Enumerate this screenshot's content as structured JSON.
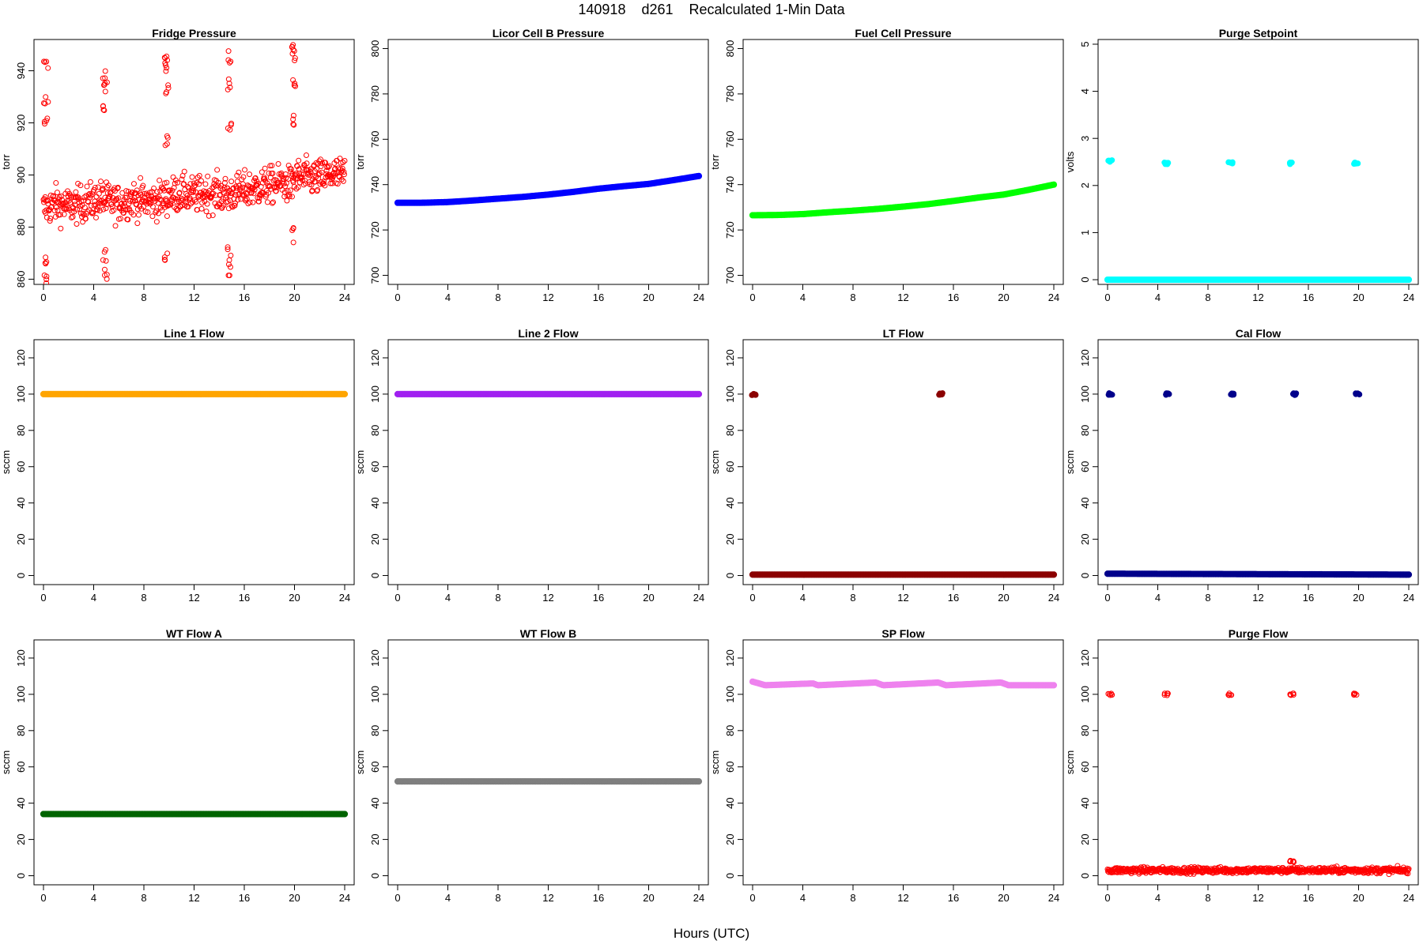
{
  "figure": {
    "title": "140918    d261    Recalculated 1-Min Data",
    "xlabel": "Hours (UTC)"
  },
  "chart_data": [
    {
      "type": "scatter",
      "title": "Fridge Pressure",
      "ylabel": "torr",
      "xlim": [
        0,
        24
      ],
      "ylim": [
        858,
        952
      ],
      "xticks": [
        0,
        4,
        8,
        12,
        16,
        20,
        24
      ],
      "yticks": [
        860,
        880,
        900,
        920,
        940
      ],
      "color": "#ff0000",
      "marker": "open-circle",
      "series": [
        {
          "x": [
            0,
            1,
            2,
            3,
            4,
            4.5,
            5,
            6,
            7,
            8,
            9,
            10,
            11,
            12,
            13,
            14,
            14.8,
            15,
            16,
            17,
            18,
            19,
            19.8,
            20,
            21,
            22,
            23,
            24
          ],
          "y": [
            887,
            889,
            888,
            889,
            890,
            891,
            890,
            889,
            891,
            890,
            890,
            892,
            893,
            892,
            893,
            893,
            892,
            893,
            894,
            895,
            896,
            897,
            896,
            899,
            899,
            899,
            900,
            900
          ]
        }
      ],
      "outliers": [
        {
          "x": 0.2,
          "y": [
            860,
            866,
            920,
            930,
            944
          ]
        },
        {
          "x": 4.9,
          "y": [
            863,
            870,
            925,
            935,
            937
          ]
        },
        {
          "x": 9.8,
          "y": [
            868,
            912,
            932,
            940,
            944
          ]
        },
        {
          "x": 14.8,
          "y": [
            864,
            870,
            920,
            935,
            946
          ]
        },
        {
          "x": 19.9,
          "y": [
            877,
            920,
            935,
            945,
            951
          ]
        }
      ]
    },
    {
      "type": "scatter",
      "title": "Licor Cell B Pressure",
      "ylabel": "torr",
      "xlim": [
        0,
        24
      ],
      "ylim": [
        696,
        804
      ],
      "xticks": [
        0,
        4,
        8,
        12,
        16,
        20,
        24
      ],
      "yticks": [
        700,
        720,
        740,
        760,
        780,
        800
      ],
      "color": "#0000ff",
      "marker": "filled-circle",
      "series": [
        {
          "x": [
            0,
            2,
            4,
            6,
            8,
            10,
            12,
            14,
            16,
            18,
            20,
            22,
            24
          ],
          "y": [
            732,
            732,
            732.3,
            733,
            733.8,
            734.6,
            735.6,
            736.8,
            738.2,
            739.3,
            740.3,
            742,
            743.8
          ]
        }
      ]
    },
    {
      "type": "scatter",
      "title": "Fuel Cell Pressure",
      "ylabel": "torr",
      "xlim": [
        0,
        24
      ],
      "ylim": [
        696,
        804
      ],
      "xticks": [
        0,
        4,
        8,
        12,
        16,
        20,
        24
      ],
      "yticks": [
        700,
        720,
        740,
        760,
        780,
        800
      ],
      "color": "#00ff00",
      "marker": "filled-circle",
      "series": [
        {
          "x": [
            0,
            2,
            4,
            6,
            8,
            10,
            12,
            14,
            16,
            18,
            20,
            22,
            24
          ],
          "y": [
            726.5,
            726.6,
            727,
            727.8,
            728.5,
            729.3,
            730.3,
            731.4,
            732.8,
            734.3,
            735.6,
            737.7,
            740
          ]
        }
      ]
    },
    {
      "type": "scatter",
      "title": "Purge Setpoint",
      "ylabel": "volts",
      "xlim": [
        0,
        24
      ],
      "ylim": [
        -0.1,
        5.1
      ],
      "xticks": [
        0,
        4,
        8,
        12,
        16,
        20,
        24
      ],
      "yticks": [
        0,
        1,
        2,
        3,
        4,
        5
      ],
      "color": "#00ffff",
      "marker": "filled-circle",
      "series": [
        {
          "x": [
            0,
            24
          ],
          "y": [
            0,
            0
          ]
        }
      ],
      "outliers": [
        {
          "x": 0.2,
          "y": [
            2.52
          ]
        },
        {
          "x": 4.7,
          "y": [
            2.47
          ]
        },
        {
          "x": 9.8,
          "y": [
            2.48
          ]
        },
        {
          "x": 14.7,
          "y": [
            2.47
          ]
        },
        {
          "x": 19.8,
          "y": [
            2.47
          ]
        }
      ]
    },
    {
      "type": "scatter",
      "title": "Line 1 Flow",
      "ylabel": "sccm",
      "xlim": [
        0,
        24
      ],
      "ylim": [
        -5,
        130
      ],
      "xticks": [
        0,
        4,
        8,
        12,
        16,
        20,
        24
      ],
      "yticks": [
        0,
        20,
        40,
        60,
        80,
        100,
        120
      ],
      "color": "#ffa500",
      "marker": "filled-circle",
      "series": [
        {
          "x": [
            0,
            24
          ],
          "y": [
            100,
            100
          ]
        }
      ]
    },
    {
      "type": "scatter",
      "title": "Line 2 Flow",
      "ylabel": "sccm",
      "xlim": [
        0,
        24
      ],
      "ylim": [
        -5,
        130
      ],
      "xticks": [
        0,
        4,
        8,
        12,
        16,
        20,
        24
      ],
      "yticks": [
        0,
        20,
        40,
        60,
        80,
        100,
        120
      ],
      "color": "#a020f0",
      "marker": "filled-circle",
      "series": [
        {
          "x": [
            0,
            24
          ],
          "y": [
            100,
            100
          ]
        }
      ]
    },
    {
      "type": "scatter",
      "title": "LT Flow",
      "ylabel": "sccm",
      "xlim": [
        0,
        24
      ],
      "ylim": [
        -5,
        130
      ],
      "xticks": [
        0,
        4,
        8,
        12,
        16,
        20,
        24
      ],
      "yticks": [
        0,
        20,
        40,
        60,
        80,
        100,
        120
      ],
      "color": "#8b0000",
      "marker": "filled-circle",
      "series": [
        {
          "x": [
            0.3,
            15,
            15.2,
            24
          ],
          "y": [
            0.5,
            0.5,
            0.5,
            0.5
          ]
        }
      ],
      "outliers": [
        {
          "x": 0.1,
          "y": [
            100
          ]
        },
        {
          "x": 15.0,
          "y": [
            100
          ]
        }
      ]
    },
    {
      "type": "scatter",
      "title": "Cal Flow",
      "ylabel": "sccm",
      "xlim": [
        0,
        24
      ],
      "ylim": [
        -5,
        130
      ],
      "xticks": [
        0,
        4,
        8,
        12,
        16,
        20,
        24
      ],
      "yticks": [
        0,
        20,
        40,
        60,
        80,
        100,
        120
      ],
      "color": "#00008b",
      "marker": "filled-circle",
      "series": [
        {
          "x": [
            0,
            24
          ],
          "y": [
            1,
            0.5
          ]
        }
      ],
      "outliers": [
        {
          "x": 0.2,
          "y": [
            100
          ]
        },
        {
          "x": 4.8,
          "y": [
            100
          ]
        },
        {
          "x": 9.9,
          "y": [
            100
          ]
        },
        {
          "x": 14.9,
          "y": [
            100
          ]
        },
        {
          "x": 19.9,
          "y": [
            100
          ]
        }
      ]
    },
    {
      "type": "scatter",
      "title": "WT Flow A",
      "ylabel": "sccm",
      "xlim": [
        0,
        24
      ],
      "ylim": [
        -5,
        130
      ],
      "xticks": [
        0,
        4,
        8,
        12,
        16,
        20,
        24
      ],
      "yticks": [
        0,
        20,
        40,
        60,
        80,
        100,
        120
      ],
      "color": "#006400",
      "marker": "filled-circle",
      "series": [
        {
          "x": [
            0,
            24
          ],
          "y": [
            34,
            34
          ]
        }
      ]
    },
    {
      "type": "scatter",
      "title": "WT Flow B",
      "ylabel": "sccm",
      "xlim": [
        0,
        24
      ],
      "ylim": [
        -5,
        130
      ],
      "xticks": [
        0,
        4,
        8,
        12,
        16,
        20,
        24
      ],
      "yticks": [
        0,
        20,
        40,
        60,
        80,
        100,
        120
      ],
      "color": "#7f7f7f",
      "marker": "filled-circle",
      "series": [
        {
          "x": [
            0,
            24
          ],
          "y": [
            52,
            52
          ]
        }
      ]
    },
    {
      "type": "scatter",
      "title": "SP Flow",
      "ylabel": "sccm",
      "xlim": [
        0,
        24
      ],
      "ylim": [
        -5,
        130
      ],
      "xticks": [
        0,
        4,
        8,
        12,
        16,
        20,
        24
      ],
      "yticks": [
        0,
        20,
        40,
        60,
        80,
        100,
        120
      ],
      "color": "#ee82ee",
      "marker": "filled-circle",
      "series": [
        {
          "x": [
            0,
            0.5,
            1,
            4.8,
            5.2,
            9.8,
            10.4,
            14.8,
            15.4,
            19.8,
            20.4,
            24
          ],
          "y": [
            107,
            106,
            105,
            106,
            105,
            106.5,
            105,
            106.5,
            105,
            106.5,
            105,
            105
          ]
        }
      ]
    },
    {
      "type": "scatter",
      "title": "Purge Flow",
      "ylabel": "sccm",
      "xlim": [
        0,
        24
      ],
      "ylim": [
        -5,
        130
      ],
      "xticks": [
        0,
        4,
        8,
        12,
        16,
        20,
        24
      ],
      "yticks": [
        0,
        20,
        40,
        60,
        80,
        100,
        120
      ],
      "color": "#ff0000",
      "marker": "open-circle",
      "series": [
        {
          "x": [
            0,
            24
          ],
          "y": [
            3,
            3
          ]
        }
      ],
      "outliers": [
        {
          "x": 0.2,
          "y": [
            100
          ]
        },
        {
          "x": 4.7,
          "y": [
            100
          ]
        },
        {
          "x": 9.8,
          "y": [
            100
          ]
        },
        {
          "x": 14.7,
          "y": [
            100,
            8
          ]
        },
        {
          "x": 19.8,
          "y": [
            100
          ]
        }
      ]
    }
  ]
}
